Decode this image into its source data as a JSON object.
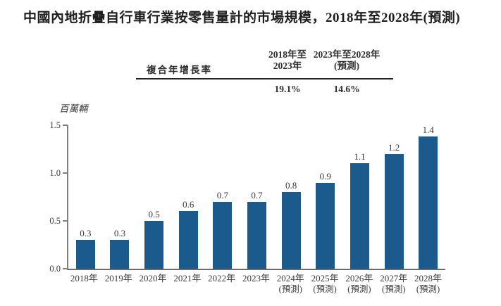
{
  "title": "中國內地折疊自行車行業按零售量計的市場規模，2018年至2028年(預測)",
  "cagr_table": {
    "row_label": "複合年增長率",
    "columns": [
      {
        "header_line1": "2018年至",
        "header_line2": "2023年",
        "value": "19.1%"
      },
      {
        "header_line1": "2023年至2028年",
        "header_line2": "(預測)",
        "value": "14.6%"
      }
    ]
  },
  "chart_data": {
    "type": "bar",
    "title": "中國內地折疊自行車行業按零售量計的市場規模，2018年至2028年(預測)",
    "unit_label": "百萬輛",
    "categories": [
      "2018年",
      "2019年",
      "2020年",
      "2021年",
      "2022年",
      "2023年",
      "2024年",
      "2025年",
      "2026年",
      "2027年",
      "2028年"
    ],
    "category_notes": [
      "",
      "",
      "",
      "",
      "",
      "",
      "(預測)",
      "(預測)",
      "(預測)",
      "(預測)",
      "(預測)"
    ],
    "values": [
      0.3,
      0.3,
      0.5,
      0.6,
      0.7,
      0.7,
      0.8,
      0.9,
      1.1,
      1.2,
      1.4
    ],
    "value_labels": [
      "0.3",
      "0.3",
      "0.5",
      "0.6",
      "0.7",
      "0.7",
      "0.8",
      "0.9",
      "1.1",
      "1.2",
      "1.4"
    ],
    "ylim": [
      0,
      1.5
    ],
    "yticks": [
      {
        "value": 0.0,
        "label": "0.0"
      },
      {
        "value": 0.5,
        "label": "0.5"
      },
      {
        "value": 1.0,
        "label": "1.0"
      },
      {
        "value": 1.5,
        "label": "1.5"
      }
    ],
    "bar_color": "#1b5a8c",
    "grid": false,
    "legend": false
  }
}
